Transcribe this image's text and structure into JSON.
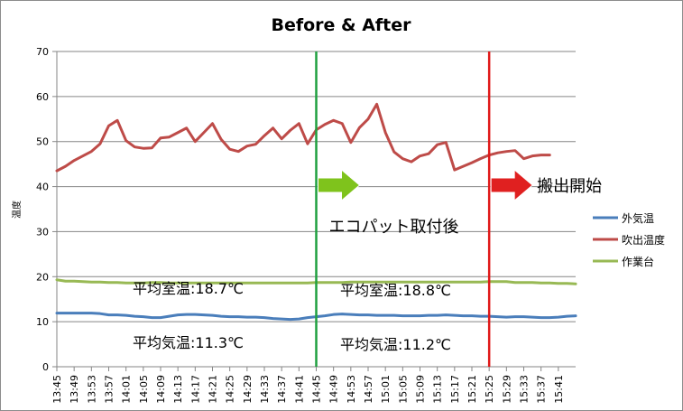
{
  "chart_data": {
    "type": "line",
    "title": "Before & After",
    "ylabel": "温度",
    "xlabel": "",
    "ylim": [
      0,
      70
    ],
    "yticks": [
      0,
      10,
      20,
      30,
      40,
      50,
      60,
      70
    ],
    "grid": true,
    "legend_position": "right",
    "x": [
      "13:45",
      "13:47",
      "13:49",
      "13:51",
      "13:53",
      "13:55",
      "13:57",
      "13:59",
      "14:01",
      "14:03",
      "14:05",
      "14:07",
      "14:09",
      "14:11",
      "14:13",
      "14:15",
      "14:17",
      "14:19",
      "14:21",
      "14:23",
      "14:25",
      "14:27",
      "14:29",
      "14:31",
      "14:33",
      "14:35",
      "14:37",
      "14:39",
      "14:41",
      "14:43",
      "14:45",
      "14:47",
      "14:49",
      "14:51",
      "14:53",
      "14:55",
      "14:57",
      "14:59",
      "15:01",
      "15:03",
      "15:05",
      "15:07",
      "15:09",
      "15:11",
      "15:13",
      "15:15",
      "15:17",
      "15:19",
      "15:21",
      "15:23",
      "15:25",
      "15:27",
      "15:29",
      "15:31",
      "15:33",
      "15:35",
      "15:37",
      "15:39",
      "15:41",
      "15:43",
      "15:45"
    ],
    "x_tick_labels": [
      "13:45",
      "13:49",
      "13:53",
      "13:57",
      "14:01",
      "14:05",
      "14:09",
      "14:13",
      "14:17",
      "14:21",
      "14:25",
      "14:29",
      "14:33",
      "14:37",
      "14:41",
      "14:45",
      "14:49",
      "14:53",
      "14:57",
      "15:01",
      "15:05",
      "15:09",
      "15:13",
      "15:17",
      "15:21",
      "15:25",
      "15:29",
      "15:33",
      "15:37",
      "15:41"
    ],
    "series": [
      {
        "name": "外気温",
        "color": "#4a7ebb",
        "values": [
          11.9,
          11.9,
          11.9,
          11.9,
          11.9,
          11.8,
          11.5,
          11.5,
          11.4,
          11.2,
          11.1,
          10.9,
          10.9,
          11.2,
          11.5,
          11.6,
          11.6,
          11.5,
          11.4,
          11.2,
          11.1,
          11.1,
          11.0,
          11.0,
          10.9,
          10.7,
          10.6,
          10.5,
          10.6,
          10.9,
          11.1,
          11.3,
          11.6,
          11.7,
          11.6,
          11.5,
          11.5,
          11.4,
          11.4,
          11.4,
          11.3,
          11.3,
          11.3,
          11.4,
          11.4,
          11.5,
          11.4,
          11.3,
          11.3,
          11.2,
          11.2,
          11.1,
          11.0,
          11.1,
          11.1,
          11.0,
          10.9,
          10.9,
          11.0,
          11.2,
          11.3
        ]
      },
      {
        "name": "吹出温度",
        "color": "#be4b48",
        "values": [
          43.5,
          44.5,
          45.8,
          46.8,
          47.8,
          49.5,
          53.5,
          54.7,
          50.2,
          48.8,
          48.5,
          48.6,
          50.8,
          51.0,
          52.0,
          53.0,
          50.0,
          52.0,
          54.0,
          50.5,
          48.3,
          47.8,
          49.0,
          49.4,
          51.3,
          53.0,
          50.6,
          52.5,
          54.0,
          49.5,
          52.6,
          53.8,
          54.7,
          54.0,
          49.8,
          53.1,
          55.0,
          58.3,
          52.0,
          47.7,
          46.2,
          45.5,
          46.8,
          47.3,
          49.3,
          49.8,
          43.7,
          44.5,
          45.3,
          46.2,
          47.0,
          47.5,
          47.8,
          48.0,
          46.2,
          46.8,
          47.0,
          47.0,
          null,
          null,
          null
        ]
      },
      {
        "name": "作業台",
        "color": "#98b954",
        "values": [
          19.3,
          19.0,
          19.0,
          18.9,
          18.8,
          18.8,
          18.7,
          18.7,
          18.6,
          18.6,
          18.6,
          18.7,
          18.7,
          18.6,
          18.6,
          18.6,
          18.6,
          18.6,
          18.6,
          18.6,
          18.6,
          18.6,
          18.6,
          18.6,
          18.6,
          18.6,
          18.6,
          18.6,
          18.6,
          18.6,
          18.7,
          18.7,
          18.7,
          18.7,
          18.8,
          18.8,
          18.8,
          18.8,
          18.8,
          18.8,
          18.8,
          18.8,
          18.8,
          18.8,
          18.8,
          18.8,
          18.8,
          18.8,
          18.8,
          18.8,
          18.9,
          18.9,
          18.9,
          18.7,
          18.7,
          18.7,
          18.6,
          18.6,
          18.5,
          18.5,
          18.4
        ]
      }
    ],
    "markers": [
      {
        "x": "14:45",
        "color": "#20a040",
        "label": "エコパット取付後",
        "arrow_color": "#7fc31c"
      },
      {
        "x": "15:25",
        "color": "#e01818",
        "label": "搬出開始",
        "arrow_color": "#e02020"
      }
    ],
    "annotations": [
      {
        "text": "平均室温:18.7℃"
      },
      {
        "text": "平均気温:11.3℃"
      },
      {
        "text": "平均室温:18.8℃"
      },
      {
        "text": "平均気温:11.2℃"
      }
    ]
  }
}
